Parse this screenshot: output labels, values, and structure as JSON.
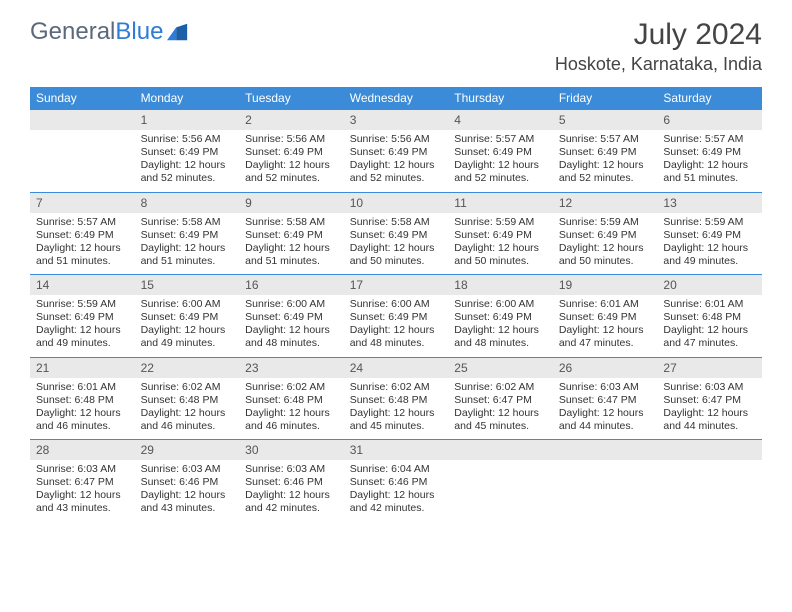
{
  "brand": {
    "prefix": "General",
    "suffix": "Blue"
  },
  "title": "July 2024",
  "location": "Hoskote, Karnataka, India",
  "colors": {
    "header_bg": "#3b8bd8",
    "daynum_bg": "#e9e9e9",
    "rule": "#3b8bd8",
    "text": "#333333",
    "brand_grey": "#5a6a7a",
    "brand_blue": "#2e7cd6"
  },
  "days_of_week": [
    "Sunday",
    "Monday",
    "Tuesday",
    "Wednesday",
    "Thursday",
    "Friday",
    "Saturday"
  ],
  "weeks": [
    [
      {
        "n": "",
        "sr": "",
        "ss": "",
        "d1": "",
        "d2": ""
      },
      {
        "n": "1",
        "sr": "Sunrise: 5:56 AM",
        "ss": "Sunset: 6:49 PM",
        "d1": "Daylight: 12 hours",
        "d2": "and 52 minutes."
      },
      {
        "n": "2",
        "sr": "Sunrise: 5:56 AM",
        "ss": "Sunset: 6:49 PM",
        "d1": "Daylight: 12 hours",
        "d2": "and 52 minutes."
      },
      {
        "n": "3",
        "sr": "Sunrise: 5:56 AM",
        "ss": "Sunset: 6:49 PM",
        "d1": "Daylight: 12 hours",
        "d2": "and 52 minutes."
      },
      {
        "n": "4",
        "sr": "Sunrise: 5:57 AM",
        "ss": "Sunset: 6:49 PM",
        "d1": "Daylight: 12 hours",
        "d2": "and 52 minutes."
      },
      {
        "n": "5",
        "sr": "Sunrise: 5:57 AM",
        "ss": "Sunset: 6:49 PM",
        "d1": "Daylight: 12 hours",
        "d2": "and 52 minutes."
      },
      {
        "n": "6",
        "sr": "Sunrise: 5:57 AM",
        "ss": "Sunset: 6:49 PM",
        "d1": "Daylight: 12 hours",
        "d2": "and 51 minutes."
      }
    ],
    [
      {
        "n": "7",
        "sr": "Sunrise: 5:57 AM",
        "ss": "Sunset: 6:49 PM",
        "d1": "Daylight: 12 hours",
        "d2": "and 51 minutes."
      },
      {
        "n": "8",
        "sr": "Sunrise: 5:58 AM",
        "ss": "Sunset: 6:49 PM",
        "d1": "Daylight: 12 hours",
        "d2": "and 51 minutes."
      },
      {
        "n": "9",
        "sr": "Sunrise: 5:58 AM",
        "ss": "Sunset: 6:49 PM",
        "d1": "Daylight: 12 hours",
        "d2": "and 51 minutes."
      },
      {
        "n": "10",
        "sr": "Sunrise: 5:58 AM",
        "ss": "Sunset: 6:49 PM",
        "d1": "Daylight: 12 hours",
        "d2": "and 50 minutes."
      },
      {
        "n": "11",
        "sr": "Sunrise: 5:59 AM",
        "ss": "Sunset: 6:49 PM",
        "d1": "Daylight: 12 hours",
        "d2": "and 50 minutes."
      },
      {
        "n": "12",
        "sr": "Sunrise: 5:59 AM",
        "ss": "Sunset: 6:49 PM",
        "d1": "Daylight: 12 hours",
        "d2": "and 50 minutes."
      },
      {
        "n": "13",
        "sr": "Sunrise: 5:59 AM",
        "ss": "Sunset: 6:49 PM",
        "d1": "Daylight: 12 hours",
        "d2": "and 49 minutes."
      }
    ],
    [
      {
        "n": "14",
        "sr": "Sunrise: 5:59 AM",
        "ss": "Sunset: 6:49 PM",
        "d1": "Daylight: 12 hours",
        "d2": "and 49 minutes."
      },
      {
        "n": "15",
        "sr": "Sunrise: 6:00 AM",
        "ss": "Sunset: 6:49 PM",
        "d1": "Daylight: 12 hours",
        "d2": "and 49 minutes."
      },
      {
        "n": "16",
        "sr": "Sunrise: 6:00 AM",
        "ss": "Sunset: 6:49 PM",
        "d1": "Daylight: 12 hours",
        "d2": "and 48 minutes."
      },
      {
        "n": "17",
        "sr": "Sunrise: 6:00 AM",
        "ss": "Sunset: 6:49 PM",
        "d1": "Daylight: 12 hours",
        "d2": "and 48 minutes."
      },
      {
        "n": "18",
        "sr": "Sunrise: 6:00 AM",
        "ss": "Sunset: 6:49 PM",
        "d1": "Daylight: 12 hours",
        "d2": "and 48 minutes."
      },
      {
        "n": "19",
        "sr": "Sunrise: 6:01 AM",
        "ss": "Sunset: 6:49 PM",
        "d1": "Daylight: 12 hours",
        "d2": "and 47 minutes."
      },
      {
        "n": "20",
        "sr": "Sunrise: 6:01 AM",
        "ss": "Sunset: 6:48 PM",
        "d1": "Daylight: 12 hours",
        "d2": "and 47 minutes."
      }
    ],
    [
      {
        "n": "21",
        "sr": "Sunrise: 6:01 AM",
        "ss": "Sunset: 6:48 PM",
        "d1": "Daylight: 12 hours",
        "d2": "and 46 minutes."
      },
      {
        "n": "22",
        "sr": "Sunrise: 6:02 AM",
        "ss": "Sunset: 6:48 PM",
        "d1": "Daylight: 12 hours",
        "d2": "and 46 minutes."
      },
      {
        "n": "23",
        "sr": "Sunrise: 6:02 AM",
        "ss": "Sunset: 6:48 PM",
        "d1": "Daylight: 12 hours",
        "d2": "and 46 minutes."
      },
      {
        "n": "24",
        "sr": "Sunrise: 6:02 AM",
        "ss": "Sunset: 6:48 PM",
        "d1": "Daylight: 12 hours",
        "d2": "and 45 minutes."
      },
      {
        "n": "25",
        "sr": "Sunrise: 6:02 AM",
        "ss": "Sunset: 6:47 PM",
        "d1": "Daylight: 12 hours",
        "d2": "and 45 minutes."
      },
      {
        "n": "26",
        "sr": "Sunrise: 6:03 AM",
        "ss": "Sunset: 6:47 PM",
        "d1": "Daylight: 12 hours",
        "d2": "and 44 minutes."
      },
      {
        "n": "27",
        "sr": "Sunrise: 6:03 AM",
        "ss": "Sunset: 6:47 PM",
        "d1": "Daylight: 12 hours",
        "d2": "and 44 minutes."
      }
    ],
    [
      {
        "n": "28",
        "sr": "Sunrise: 6:03 AM",
        "ss": "Sunset: 6:47 PM",
        "d1": "Daylight: 12 hours",
        "d2": "and 43 minutes."
      },
      {
        "n": "29",
        "sr": "Sunrise: 6:03 AM",
        "ss": "Sunset: 6:46 PM",
        "d1": "Daylight: 12 hours",
        "d2": "and 43 minutes."
      },
      {
        "n": "30",
        "sr": "Sunrise: 6:03 AM",
        "ss": "Sunset: 6:46 PM",
        "d1": "Daylight: 12 hours",
        "d2": "and 42 minutes."
      },
      {
        "n": "31",
        "sr": "Sunrise: 6:04 AM",
        "ss": "Sunset: 6:46 PM",
        "d1": "Daylight: 12 hours",
        "d2": "and 42 minutes."
      },
      {
        "n": "",
        "sr": "",
        "ss": "",
        "d1": "",
        "d2": ""
      },
      {
        "n": "",
        "sr": "",
        "ss": "",
        "d1": "",
        "d2": ""
      },
      {
        "n": "",
        "sr": "",
        "ss": "",
        "d1": "",
        "d2": ""
      }
    ]
  ]
}
